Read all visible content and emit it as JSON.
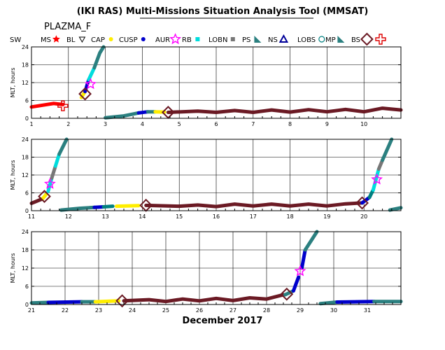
{
  "title": "(IKI RAS) Multi-Missions Situation Analysis Tool (MMSAT)",
  "satellite": "PLAZMA_F",
  "month_label": "December 2017",
  "legend": [
    {
      "label": "SW",
      "marker": "none",
      "color": "#000000"
    },
    {
      "label": "MS",
      "marker": "star-small",
      "color": "#ff0000"
    },
    {
      "label": "BL",
      "marker": "triangle-down",
      "color": "#000000"
    },
    {
      "label": "CAP",
      "marker": "dot",
      "color": "#ffee00"
    },
    {
      "label": "CUSP",
      "marker": "dot",
      "color": "#0000cc"
    },
    {
      "label": "AUR",
      "marker": "star",
      "color": "#ff00ff"
    },
    {
      "label": "RB",
      "marker": "square",
      "color": "#00dddd"
    },
    {
      "label": "LOBN",
      "marker": "square",
      "color": "#777777"
    },
    {
      "label": "PS",
      "marker": "flag",
      "color": "#2b8080"
    },
    {
      "label": "NS",
      "marker": "triangle-up",
      "color": "#000099"
    },
    {
      "label": "LOBS",
      "marker": "circle",
      "color": "#008080"
    },
    {
      "label": "MP",
      "marker": "flag",
      "color": "#2b8080"
    },
    {
      "label": "BS",
      "marker": "diamond",
      "color": "#6b1a24"
    },
    {
      "label": "",
      "marker": "cross",
      "color": "#dd0000"
    }
  ],
  "colors": {
    "MS": "#ff0000",
    "CAP": "#ffee00",
    "CUSP": "#0000cc",
    "AUR": "#ff00ff",
    "RB": "#00dddd",
    "LOBN": "#777777",
    "PS": "#2b8080",
    "LOBS": "#008080",
    "SW": "#6b1a24",
    "BS": "#dd0000",
    "MP": "#6b1a24"
  },
  "chart_data": [
    {
      "type": "scatter",
      "ylabel": "MLT, hours",
      "xlim": [
        1,
        11
      ],
      "ylim": [
        0,
        24
      ],
      "x_ticks": [
        "1",
        "2",
        "3",
        "4",
        "5",
        "6",
        "7",
        "8",
        "9",
        "10"
      ],
      "y_ticks": [
        "0",
        "6",
        "12",
        "18",
        "24"
      ],
      "segments": [
        {
          "region": "MS",
          "points": [
            [
              1.0,
              3.8
            ],
            [
              1.3,
              4.4
            ],
            [
              1.6,
              5.0
            ],
            [
              1.85,
              4.6
            ]
          ]
        },
        {
          "region": "CAP",
          "points": [
            [
              2.35,
              7.0
            ],
            [
              2.45,
              9.0
            ]
          ]
        },
        {
          "region": "CUSP",
          "points": [
            [
              2.45,
              9.0
            ],
            [
              2.55,
              13.0
            ]
          ]
        },
        {
          "region": "RB",
          "points": [
            [
              2.55,
              13.0
            ],
            [
              2.7,
              17.0
            ]
          ]
        },
        {
          "region": "PS",
          "points": [
            [
              2.7,
              17.0
            ],
            [
              2.85,
              22.0
            ],
            [
              2.95,
              24.0
            ]
          ]
        },
        {
          "region": "PS",
          "points": [
            [
              3.0,
              0.2
            ],
            [
              3.5,
              0.8
            ],
            [
              3.9,
              1.8
            ]
          ]
        },
        {
          "region": "CUSP",
          "points": [
            [
              3.9,
              1.8
            ],
            [
              4.15,
              2.2
            ]
          ]
        },
        {
          "region": "PS",
          "points": [
            [
              4.15,
              2.2
            ],
            [
              4.35,
              2.2
            ]
          ]
        },
        {
          "region": "CAP",
          "points": [
            [
              4.35,
              2.2
            ],
            [
              4.6,
              2.1
            ]
          ]
        },
        {
          "region": "SW",
          "points": [
            [
              4.7,
              2.0
            ],
            [
              5.5,
              2.4
            ],
            [
              6.0,
              2.0
            ],
            [
              6.5,
              2.6
            ],
            [
              7.0,
              2.0
            ],
            [
              7.5,
              2.8
            ],
            [
              8.0,
              2.1
            ],
            [
              8.5,
              2.9
            ],
            [
              9.0,
              2.2
            ],
            [
              9.5,
              3.0
            ],
            [
              10.0,
              2.2
            ],
            [
              10.5,
              3.4
            ],
            [
              11.0,
              2.8
            ]
          ]
        }
      ],
      "events": [
        {
          "type": "BS",
          "x": 1.85,
          "y": 4.2
        },
        {
          "type": "MP",
          "x": 2.45,
          "y": 8.2
        },
        {
          "type": "AUR",
          "x": 2.6,
          "y": 11.5
        },
        {
          "type": "MP",
          "x": 4.7,
          "y": 2.0
        }
      ]
    },
    {
      "type": "scatter",
      "ylabel": "MLT, hours",
      "xlim": [
        11,
        21
      ],
      "ylim": [
        0,
        24
      ],
      "x_ticks": [
        "11",
        "12",
        "13",
        "14",
        "15",
        "16",
        "17",
        "18",
        "19",
        "20"
      ],
      "y_ticks": [
        "0",
        "6",
        "12",
        "18",
        "24"
      ],
      "segments": [
        {
          "region": "SW",
          "points": [
            [
              11.0,
              2.5
            ],
            [
              11.3,
              4.0
            ]
          ]
        },
        {
          "region": "CAP",
          "points": [
            [
              11.3,
              4.0
            ],
            [
              11.4,
              5.5
            ]
          ]
        },
        {
          "region": "RB",
          "points": [
            [
              11.45,
              6.5
            ],
            [
              11.55,
              11.0
            ]
          ]
        },
        {
          "region": "LOBN",
          "points": [
            [
              11.55,
              11.0
            ],
            [
              11.65,
              15.0
            ]
          ]
        },
        {
          "region": "RB",
          "points": [
            [
              11.65,
              15.0
            ],
            [
              11.75,
              19.0
            ]
          ]
        },
        {
          "region": "PS",
          "points": [
            [
              11.75,
              19.0
            ],
            [
              11.95,
              24.0
            ]
          ]
        },
        {
          "region": "PS",
          "points": [
            [
              11.8,
              0.2
            ],
            [
              12.3,
              0.8
            ],
            [
              12.7,
              1.1
            ]
          ]
        },
        {
          "region": "CUSP",
          "points": [
            [
              12.7,
              1.1
            ],
            [
              12.95,
              1.3
            ]
          ]
        },
        {
          "region": "LOBS",
          "points": [
            [
              12.95,
              1.3
            ],
            [
              13.2,
              1.5
            ]
          ]
        },
        {
          "region": "CAP",
          "points": [
            [
              13.3,
              1.5
            ],
            [
              13.9,
              1.7
            ]
          ]
        },
        {
          "region": "SW",
          "points": [
            [
              14.1,
              1.8
            ],
            [
              15.0,
              1.5
            ],
            [
              15.5,
              1.9
            ],
            [
              16.0,
              1.4
            ],
            [
              16.5,
              2.2
            ],
            [
              17.0,
              1.6
            ],
            [
              17.5,
              2.2
            ],
            [
              18.0,
              1.6
            ],
            [
              18.5,
              2.2
            ],
            [
              19.0,
              1.6
            ],
            [
              19.5,
              2.3
            ],
            [
              19.95,
              2.6
            ]
          ]
        },
        {
          "region": "CUSP",
          "points": [
            [
              19.95,
              2.6
            ],
            [
              20.15,
              4.5
            ]
          ]
        },
        {
          "region": "LOBS",
          "points": [
            [
              20.15,
              4.5
            ],
            [
              20.25,
              7.0
            ]
          ]
        },
        {
          "region": "RB",
          "points": [
            [
              20.25,
              7.0
            ],
            [
              20.4,
              14.0
            ]
          ]
        },
        {
          "region": "LOBN",
          "points": [
            [
              20.4,
              14.0
            ],
            [
              20.5,
              17.0
            ]
          ]
        },
        {
          "region": "PS",
          "points": [
            [
              20.5,
              17.0
            ],
            [
              20.75,
              24.0
            ]
          ]
        },
        {
          "region": "PS",
          "points": [
            [
              20.7,
              0.2
            ],
            [
              21.0,
              1.0
            ]
          ]
        }
      ],
      "events": [
        {
          "type": "MP",
          "x": 11.35,
          "y": 4.8
        },
        {
          "type": "AUR",
          "x": 11.5,
          "y": 9.0
        },
        {
          "type": "MP",
          "x": 14.1,
          "y": 1.8
        },
        {
          "type": "MP",
          "x": 19.95,
          "y": 2.6
        },
        {
          "type": "AUR",
          "x": 20.35,
          "y": 10.5
        }
      ]
    },
    {
      "type": "scatter",
      "ylabel": "MLT, hours",
      "xlim": [
        21,
        32
      ],
      "ylim": [
        0,
        24
      ],
      "x_ticks": [
        "21",
        "22",
        "23",
        "24",
        "25",
        "26",
        "27",
        "28",
        "29",
        "30",
        "31"
      ],
      "y_ticks": [
        "0",
        "6",
        "12",
        "18",
        "24"
      ],
      "segments": [
        {
          "region": "PS",
          "points": [
            [
              21.0,
              0.5
            ],
            [
              21.5,
              0.7
            ]
          ]
        },
        {
          "region": "CUSP",
          "points": [
            [
              21.5,
              0.7
            ],
            [
              22.5,
              0.9
            ]
          ]
        },
        {
          "region": "PS",
          "points": [
            [
              22.5,
              0.9
            ],
            [
              22.9,
              0.9
            ]
          ]
        },
        {
          "region": "CAP",
          "points": [
            [
              22.9,
              0.9
            ],
            [
              23.6,
              1.2
            ]
          ]
        },
        {
          "region": "SW",
          "points": [
            [
              23.75,
              1.2
            ],
            [
              24.5,
              1.6
            ],
            [
              25.0,
              1.0
            ],
            [
              25.5,
              1.8
            ],
            [
              26.0,
              1.2
            ],
            [
              26.5,
              2.0
            ],
            [
              27.0,
              1.3
            ],
            [
              27.5,
              2.2
            ],
            [
              28.0,
              1.8
            ],
            [
              28.5,
              3.2
            ]
          ]
        },
        {
          "region": "PS",
          "points": [
            [
              28.55,
              3.2
            ],
            [
              28.8,
              4.5
            ]
          ]
        },
        {
          "region": "CUSP",
          "points": [
            [
              28.8,
              4.5
            ],
            [
              28.95,
              9.0
            ]
          ]
        },
        {
          "region": "CUSP",
          "points": [
            [
              29.05,
              12.0
            ],
            [
              29.15,
              18.0
            ]
          ]
        },
        {
          "region": "PS",
          "points": [
            [
              29.15,
              18.0
            ],
            [
              29.5,
              24.0
            ]
          ]
        },
        {
          "region": "PS",
          "points": [
            [
              29.6,
              0.3
            ],
            [
              30.1,
              0.8
            ]
          ]
        },
        {
          "region": "CUSP",
          "points": [
            [
              30.1,
              0.8
            ],
            [
              31.2,
              1.0
            ]
          ]
        },
        {
          "region": "PS",
          "points": [
            [
              31.2,
              1.0
            ],
            [
              32.0,
              1.0
            ]
          ]
        }
      ],
      "events": [
        {
          "type": "MP",
          "x": 23.7,
          "y": 1.2
        },
        {
          "type": "MP",
          "x": 28.6,
          "y": 3.4
        },
        {
          "type": "AUR",
          "x": 29.0,
          "y": 11.0
        }
      ]
    }
  ]
}
